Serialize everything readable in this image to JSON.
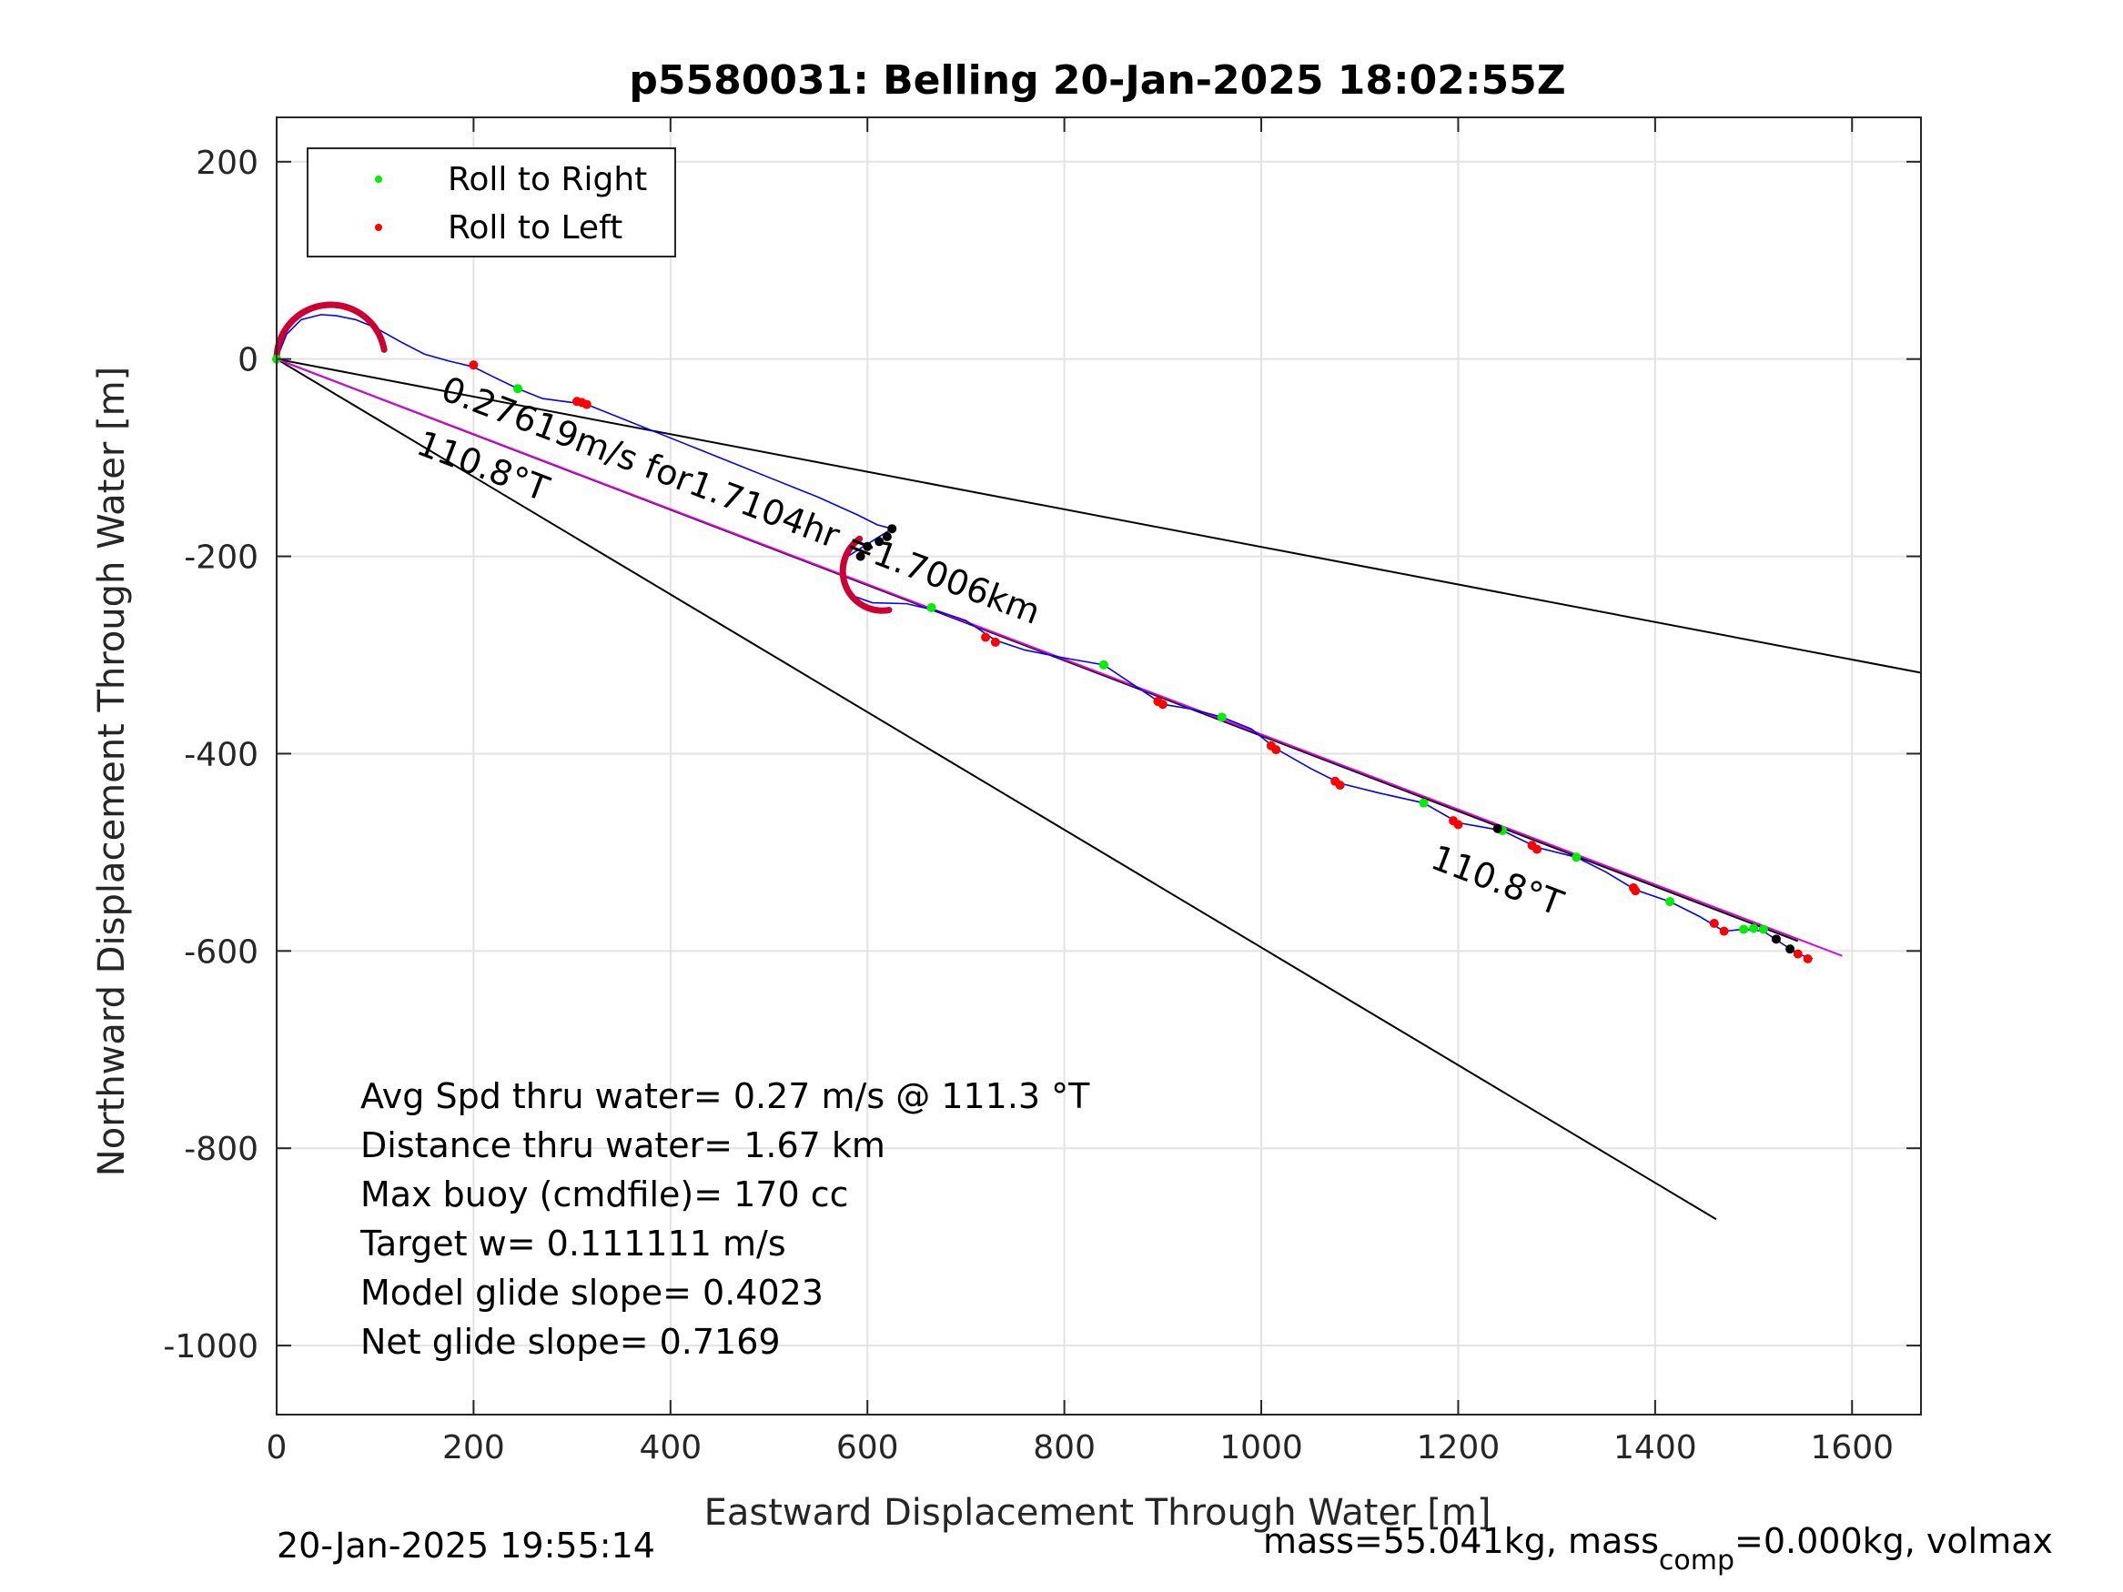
{
  "chart_data": {
    "type": "line",
    "title": "p5580031: Belling 20-Jan-2025 18:02:55Z",
    "xlabel": "Eastward Displacement Through Water [m]",
    "ylabel": "Northward Displacement Through Water [m]",
    "xlim": [
      0,
      1670
    ],
    "ylim": [
      -1070,
      245
    ],
    "xticks": [
      "0",
      "200",
      "400",
      "600",
      "800",
      "1000",
      "1200",
      "1400",
      "1600"
    ],
    "xtick_values": [
      0,
      200,
      400,
      600,
      800,
      1000,
      1200,
      1400,
      1600
    ],
    "yticks": [
      "200",
      "0",
      "-200",
      "-400",
      "-600",
      "-800",
      "-1000"
    ],
    "ytick_values": [
      200,
      0,
      -200,
      -400,
      -600,
      -800,
      -1000
    ],
    "grid": true,
    "legend": {
      "position": "top-left",
      "entries": [
        {
          "label": "Roll to Right",
          "color": "#00ee00"
        },
        {
          "label": "Roll to Left",
          "color": "#ff0000"
        }
      ]
    },
    "track": {
      "color": "#0000ff",
      "x": [
        0,
        10,
        25,
        45,
        60,
        80,
        100,
        125,
        150,
        175,
        200,
        220,
        245,
        270,
        300,
        320,
        350,
        400,
        450,
        500,
        550,
        590,
        610,
        625,
        580,
        575,
        585,
        605,
        640,
        670,
        700,
        730,
        760,
        800,
        840,
        870,
        900,
        930,
        960,
        990,
        1015,
        1050,
        1080,
        1120,
        1165,
        1200,
        1245,
        1280,
        1320,
        1350,
        1380,
        1415,
        1445,
        1470,
        1490,
        1510,
        1525,
        1545,
        1560
      ],
      "y": [
        0,
        25,
        40,
        45,
        44,
        40,
        32,
        18,
        5,
        -2,
        -8,
        -18,
        -30,
        -40,
        -44,
        -48,
        -60,
        -80,
        -100,
        -120,
        -140,
        -158,
        -168,
        -172,
        -200,
        -220,
        -240,
        -247,
        -248,
        -255,
        -265,
        -285,
        -295,
        -303,
        -310,
        -330,
        -350,
        -355,
        -363,
        -375,
        -395,
        -415,
        -430,
        -440,
        -450,
        -470,
        -478,
        -495,
        -505,
        -520,
        -538,
        -550,
        -565,
        -580,
        -578,
        -580,
        -590,
        -603,
        -608
      ]
    },
    "roll_right": {
      "color": "#00ee00",
      "x": [
        0,
        245,
        665,
        840,
        960,
        1165,
        1245,
        1320,
        1415,
        1490,
        1500,
        1510
      ],
      "y": [
        0,
        -30,
        -252,
        -310,
        -363,
        -450,
        -478,
        -505,
        -550,
        -578,
        -577,
        -578
      ]
    },
    "roll_left": {
      "color": "#ff0000",
      "x": [
        200,
        305,
        310,
        315,
        720,
        730,
        895,
        900,
        1010,
        1015,
        1075,
        1080,
        1195,
        1200,
        1275,
        1280,
        1378,
        1380,
        1460,
        1470,
        1545,
        1555
      ],
      "y": [
        -6,
        -43,
        -44,
        -46,
        -282,
        -287,
        -347,
        -350,
        -392,
        -396,
        -428,
        -432,
        -468,
        -472,
        -493,
        -497,
        -536,
        -539,
        -572,
        -580,
        -603,
        -608
      ]
    },
    "descent_arc": {
      "color": "#cc0033",
      "cx": 55,
      "cy": 0,
      "r": 55,
      "start_deg": 180,
      "end_deg": 10
    },
    "ascent_arc": {
      "color": "#cc0033",
      "cx": 615,
      "cy": -215,
      "r": 40,
      "start_deg": 125,
      "end_deg": 280
    },
    "black_markers": {
      "color": "#000000",
      "x": [
        625,
        620,
        612,
        600,
        593,
        1240,
        1523,
        1537
      ],
      "y": [
        -172,
        -180,
        -185,
        -190,
        -200,
        -476,
        -588,
        -598
      ]
    },
    "lines": [
      {
        "name": "",
        "color": "#000000",
        "x": [
          0,
          1670
        ],
        "y": [
          0,
          -318
        ]
      },
      {
        "name": "",
        "color": "#000000",
        "x": [
          0,
          1462
        ],
        "y": [
          0,
          -872
        ]
      },
      {
        "name": "",
        "color": "#000000",
        "x": [
          0,
          1545
        ],
        "y": [
          0,
          -590
        ]
      },
      {
        "name": "",
        "color": "#dd00dd",
        "x": [
          0,
          1590
        ],
        "y": [
          0,
          -605
        ]
      }
    ],
    "annotations": [
      {
        "text": "0.27619m/s for1.7104hr =1.7006km",
        "x": 165,
        "y": -40,
        "angle_deg": 20.8
      },
      {
        "text": "110.8°T",
        "x": 140,
        "y": -95,
        "angle_deg": 20.8
      },
      {
        "text": "110.8°T",
        "x": 1170,
        "y": -515,
        "angle_deg": 20.8
      }
    ],
    "info_lines": [
      "Avg Spd thru water=  0.27 m/s @ 111.3 °T",
      "Distance thru water=  1.67 km",
      "Max buoy (cmdfile)= 170 cc",
      "Target w= 0.111111 m/s",
      "Model glide slope= 0.4023",
      "Net glide slope= 0.7169"
    ]
  },
  "footer": {
    "timestamp": "20-Jan-2025 19:55:14",
    "mass_text": "mass=55.041kg, mass",
    "mass_sub": "comp",
    "mass_tail": "=0.000kg, volmax"
  }
}
